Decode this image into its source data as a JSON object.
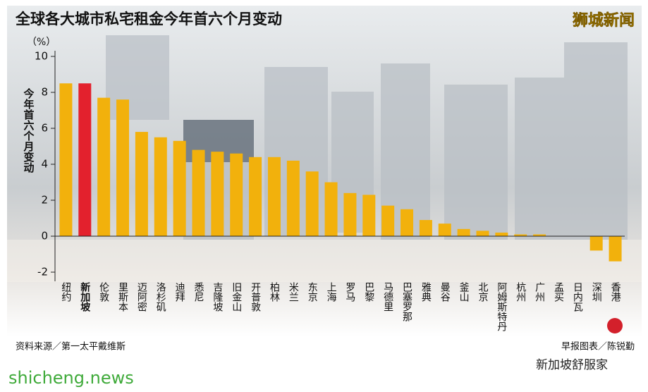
{
  "chart_data": {
    "type": "bar",
    "title": "全球各大城市私宅租金今年首六个月变动",
    "ylabel": "今年首六个月变动",
    "yunit": "（%）",
    "categories": [
      "纽约",
      "新加坡",
      "伦敦",
      "里斯本",
      "迈阿密",
      "洛杉矶",
      "迪拜",
      "悉尼",
      "吉隆坡",
      "旧金山",
      "开普敦",
      "柏林",
      "米兰",
      "东京",
      "上海",
      "罗马",
      "巴黎",
      "马德里",
      "巴塞罗那",
      "雅典",
      "曼谷",
      "釜山",
      "北京",
      "阿姆斯特丹",
      "杭州",
      "广州",
      "孟买",
      "日内瓦",
      "深圳",
      "香港"
    ],
    "values": [
      8.5,
      8.5,
      7.7,
      7.6,
      5.8,
      5.5,
      5.3,
      4.8,
      4.7,
      4.6,
      4.4,
      4.4,
      4.2,
      3.6,
      3.0,
      2.4,
      2.3,
      1.7,
      1.5,
      0.9,
      0.7,
      0.4,
      0.3,
      0.2,
      0.1,
      0.1,
      0,
      0,
      -0.8,
      -1.4
    ],
    "colors": [
      "#f2b10c",
      "#e3212d",
      "#f2b10c",
      "#f2b10c",
      "#f2b10c",
      "#f2b10c",
      "#f2b10c",
      "#f2b10c",
      "#f2b10c",
      "#f2b10c",
      "#f2b10c",
      "#f2b10c",
      "#f2b10c",
      "#f2b10c",
      "#f2b10c",
      "#f2b10c",
      "#f2b10c",
      "#f2b10c",
      "#f2b10c",
      "#f2b10c",
      "#f2b10c",
      "#f2b10c",
      "#f2b10c",
      "#f2b10c",
      "#f2b10c",
      "#f2b10c",
      "#f2b10c",
      "#f2b10c",
      "#f2b10c",
      "#f2b10c"
    ],
    "ylim": [
      -2.5,
      10.3
    ],
    "yticks": [
      -2,
      0,
      2,
      4,
      6,
      8,
      10
    ],
    "source": "资料来源／第一太平戴维斯",
    "credit": "早报图表／陈锐勤"
  },
  "logo": "狮城新闻",
  "site": "shicheng.news",
  "account": "新加坡舒服家"
}
